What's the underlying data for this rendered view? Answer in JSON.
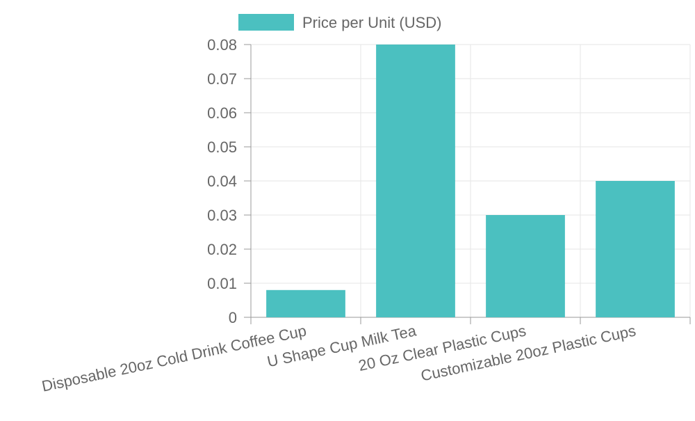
{
  "chart_data": {
    "type": "bar",
    "categories": [
      "Disposable 20oz Cold Drink Coffee Cup",
      "U Shape Cup Milk Tea",
      "20 Oz Clear Plastic Cups",
      "Customizable 20oz Plastic Cups"
    ],
    "series": [
      {
        "name": "Price per Unit (USD)",
        "values": [
          0.008,
          0.08,
          0.03,
          0.04
        ],
        "color": "#4bc0c0"
      }
    ],
    "y_ticks": [
      "0",
      "0.01",
      "0.02",
      "0.03",
      "0.04",
      "0.05",
      "0.06",
      "0.07",
      "0.08"
    ],
    "ylim": [
      0,
      0.08
    ],
    "grid": true,
    "legend_position": "top",
    "title": "",
    "xlabel": "",
    "ylabel": ""
  },
  "colors": {
    "bar": "#4bc0c0",
    "grid": "#e5e5e5",
    "axis": "#999999",
    "text": "#666666"
  }
}
